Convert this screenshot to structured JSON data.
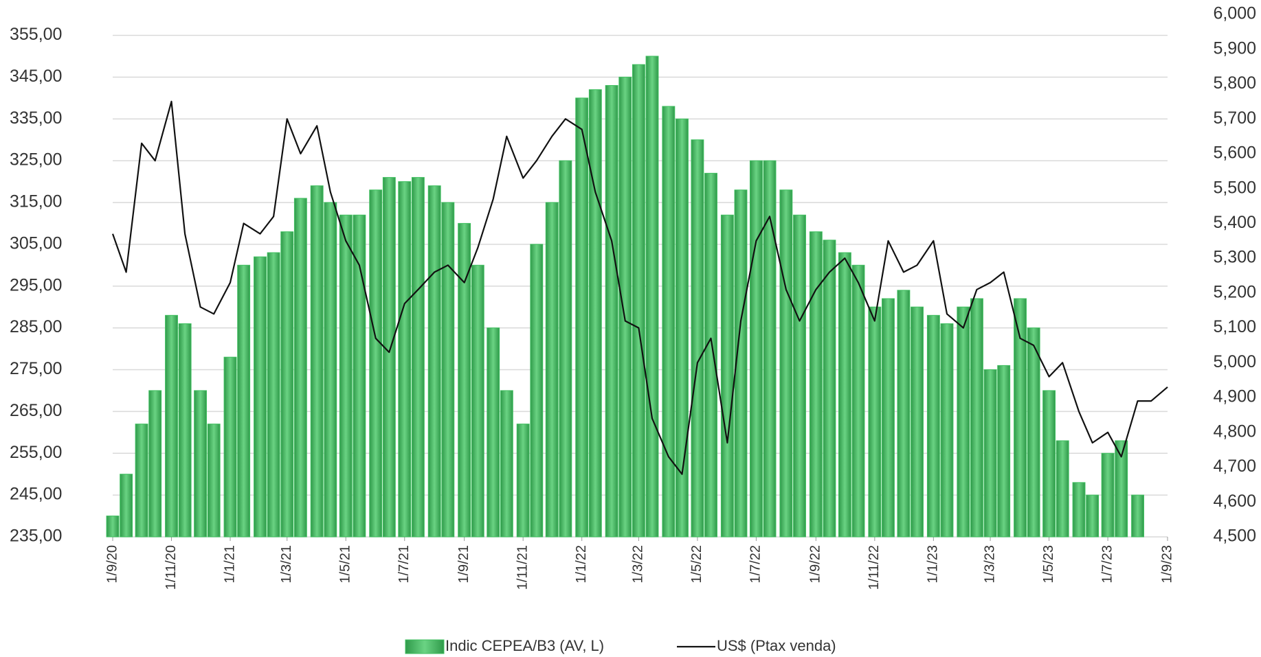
{
  "chart_data": {
    "type": "bar-line",
    "x": [
      "1/9/20",
      "15/9/20",
      "1/10/20",
      "15/10/20",
      "1/11/20",
      "15/11/20",
      "1/12/20",
      "15/12/20",
      "1/1/21",
      "15/1/21",
      "1/2/21",
      "15/2/21",
      "1/3/21",
      "15/3/21",
      "1/4/21",
      "15/4/21",
      "1/5/21",
      "15/5/21",
      "1/6/21",
      "15/6/21",
      "1/7/21",
      "15/7/21",
      "1/8/21",
      "15/8/21",
      "1/9/21",
      "15/9/21",
      "1/10/21",
      "15/10/21",
      "1/11/21",
      "15/11/21",
      "1/12/21",
      "15/12/21",
      "1/1/22",
      "15/1/22",
      "1/2/22",
      "15/2/22",
      "1/3/22",
      "15/3/22",
      "1/4/22",
      "15/4/22",
      "1/5/22",
      "15/5/22",
      "1/6/22",
      "15/6/22",
      "1/7/22",
      "15/7/22",
      "1/8/22",
      "15/8/22",
      "1/9/22",
      "15/9/22",
      "1/10/22",
      "15/10/22",
      "1/11/22",
      "15/11/22",
      "1/12/22",
      "15/12/22",
      "1/1/23",
      "15/1/23",
      "1/2/23",
      "15/2/23",
      "1/3/23",
      "15/3/23",
      "1/4/23",
      "15/4/23",
      "1/5/23",
      "15/5/23",
      "1/6/23",
      "15/6/23",
      "1/7/23",
      "15/7/23",
      "1/8/23",
      "15/8/23",
      "1/9/23"
    ],
    "series": [
      {
        "name": "Indic CEPEA/B3 (AV, L)",
        "type": "bar",
        "color": "#3fbf5f",
        "values": [
          240,
          250,
          262,
          270,
          288,
          286,
          270,
          262,
          278,
          300,
          302,
          303,
          308,
          316,
          319,
          315,
          312,
          312,
          318,
          321,
          320,
          321,
          319,
          315,
          310,
          300,
          285,
          270,
          262,
          305,
          315,
          325,
          340,
          342,
          343,
          345,
          348,
          350,
          338,
          335,
          330,
          322,
          312,
          318,
          325,
          325,
          318,
          312,
          308,
          306,
          303,
          300,
          290,
          292,
          294,
          290,
          288,
          286,
          290,
          292,
          275,
          276,
          292,
          285,
          270,
          258,
          248,
          245,
          255,
          258,
          245,
          null,
          null
        ]
      },
      {
        "name": "US$ (Ptax venda)",
        "type": "line",
        "color": "#111111",
        "axis": "y2",
        "values": [
          5.37,
          5.26,
          5.63,
          5.58,
          5.75,
          5.37,
          5.16,
          5.14,
          5.23,
          5.4,
          5.37,
          5.42,
          5.7,
          5.6,
          5.68,
          5.49,
          5.35,
          5.28,
          5.07,
          5.03,
          5.17,
          5.21,
          5.26,
          5.28,
          5.23,
          5.33,
          5.47,
          5.65,
          5.53,
          5.58,
          5.65,
          5.7,
          5.67,
          5.49,
          5.35,
          5.12,
          5.1,
          4.84,
          4.73,
          4.68,
          5.0,
          5.07,
          4.77,
          5.12,
          5.35,
          5.42,
          5.21,
          5.12,
          5.21,
          5.26,
          5.3,
          5.23,
          5.12,
          5.35,
          5.26,
          5.28,
          5.35,
          5.14,
          5.1,
          5.21,
          5.23,
          5.26,
          5.07,
          5.05,
          4.96,
          5.0,
          4.86,
          4.77,
          4.8,
          4.73,
          4.89,
          4.89,
          4.93
        ]
      }
    ],
    "xticks": [
      "1/9/20",
      "1/11/20",
      "1/1/21",
      "1/3/21",
      "1/5/21",
      "1/7/21",
      "1/9/21",
      "1/11/21",
      "1/1/22",
      "1/3/22",
      "1/5/22",
      "1/7/22",
      "1/9/22",
      "1/11/22",
      "1/1/23",
      "1/3/23",
      "1/5/23",
      "1/7/23",
      "1/9/23"
    ],
    "ylim": [
      235,
      360
    ],
    "yticks": [
      {
        "value": 235,
        "label": "235,00"
      },
      {
        "value": 245,
        "label": "245,00"
      },
      {
        "value": 255,
        "label": "255,00"
      },
      {
        "value": 265,
        "label": "265,00"
      },
      {
        "value": 275,
        "label": "275,00"
      },
      {
        "value": 285,
        "label": "285,00"
      },
      {
        "value": 295,
        "label": "295,00"
      },
      {
        "value": 305,
        "label": "305,00"
      },
      {
        "value": 315,
        "label": "315,00"
      },
      {
        "value": 325,
        "label": "325,00"
      },
      {
        "value": 335,
        "label": "335,00"
      },
      {
        "value": 345,
        "label": "345,00"
      },
      {
        "value": 355,
        "label": "355,00"
      }
    ],
    "y2lim": [
      4.5,
      6.0
    ],
    "y2ticks": [
      {
        "value": 4.5,
        "label": "4,500"
      },
      {
        "value": 4.6,
        "label": "4,600"
      },
      {
        "value": 4.7,
        "label": "4,700"
      },
      {
        "value": 4.8,
        "label": "4,800"
      },
      {
        "value": 4.9,
        "label": "4,900"
      },
      {
        "value": 5.0,
        "label": "5,000"
      },
      {
        "value": 5.1,
        "label": "5,100"
      },
      {
        "value": 5.2,
        "label": "5,200"
      },
      {
        "value": 5.3,
        "label": "5,300"
      },
      {
        "value": 5.4,
        "label": "5,400"
      },
      {
        "value": 5.5,
        "label": "5,500"
      },
      {
        "value": 5.6,
        "label": "5,600"
      },
      {
        "value": 5.7,
        "label": "5,700"
      },
      {
        "value": 5.8,
        "label": "5,800"
      },
      {
        "value": 5.9,
        "label": "5,900"
      },
      {
        "value": 6.0,
        "label": "6,000"
      }
    ],
    "grid": true,
    "legend": "bottom"
  }
}
